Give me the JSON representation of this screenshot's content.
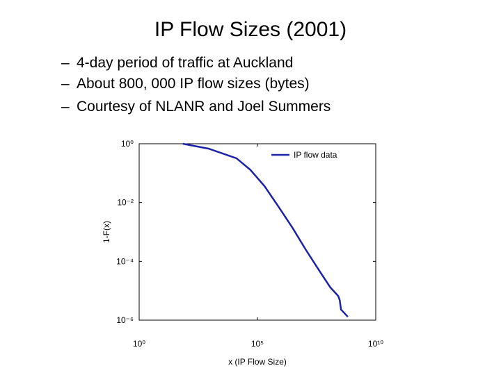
{
  "title": "IP Flow Sizes (2001)",
  "bullets": [
    "4-day period of traffic at Auckland",
    "About 800, 000 IP flow sizes (bytes)",
    "Courtesy of  NLANR and Joel Summers"
  ],
  "chart_data": {
    "type": "line",
    "xlabel": "x (IP Flow Size)",
    "ylabel": "1-F(x)",
    "xscale": "log",
    "yscale": "log",
    "xlim": [
      1,
      10000000000
    ],
    "ylim": [
      1e-06,
      1
    ],
    "xticks": [
      {
        "value": 1,
        "label": "10⁰"
      },
      {
        "value": 100000,
        "label": "10⁵"
      },
      {
        "value": 10000000000,
        "label": "10¹⁰"
      }
    ],
    "yticks": [
      {
        "value": 1,
        "label": "10⁰"
      },
      {
        "value": 0.01,
        "label": "10⁻²"
      },
      {
        "value": 0.0001,
        "label": "10⁻⁴"
      },
      {
        "value": 1e-06,
        "label": "10⁻⁶"
      }
    ],
    "grid": false,
    "legend": "northeast",
    "series": [
      {
        "name": "IP flow data",
        "color": "#1c22a8",
        "x": [
          70,
          870,
          13000,
          50000,
          200000,
          760000,
          3000000,
          11000000,
          45000000,
          120000000,
          260000000,
          300000000,
          340000000,
          660000000
        ],
        "values": [
          1,
          0.68,
          0.32,
          0.13,
          0.036,
          0.0074,
          0.0014,
          0.00025,
          4.3e-05,
          1.3e-05,
          6.6e-06,
          4.8e-06,
          2.3e-06,
          1.3e-06
        ]
      }
    ]
  }
}
